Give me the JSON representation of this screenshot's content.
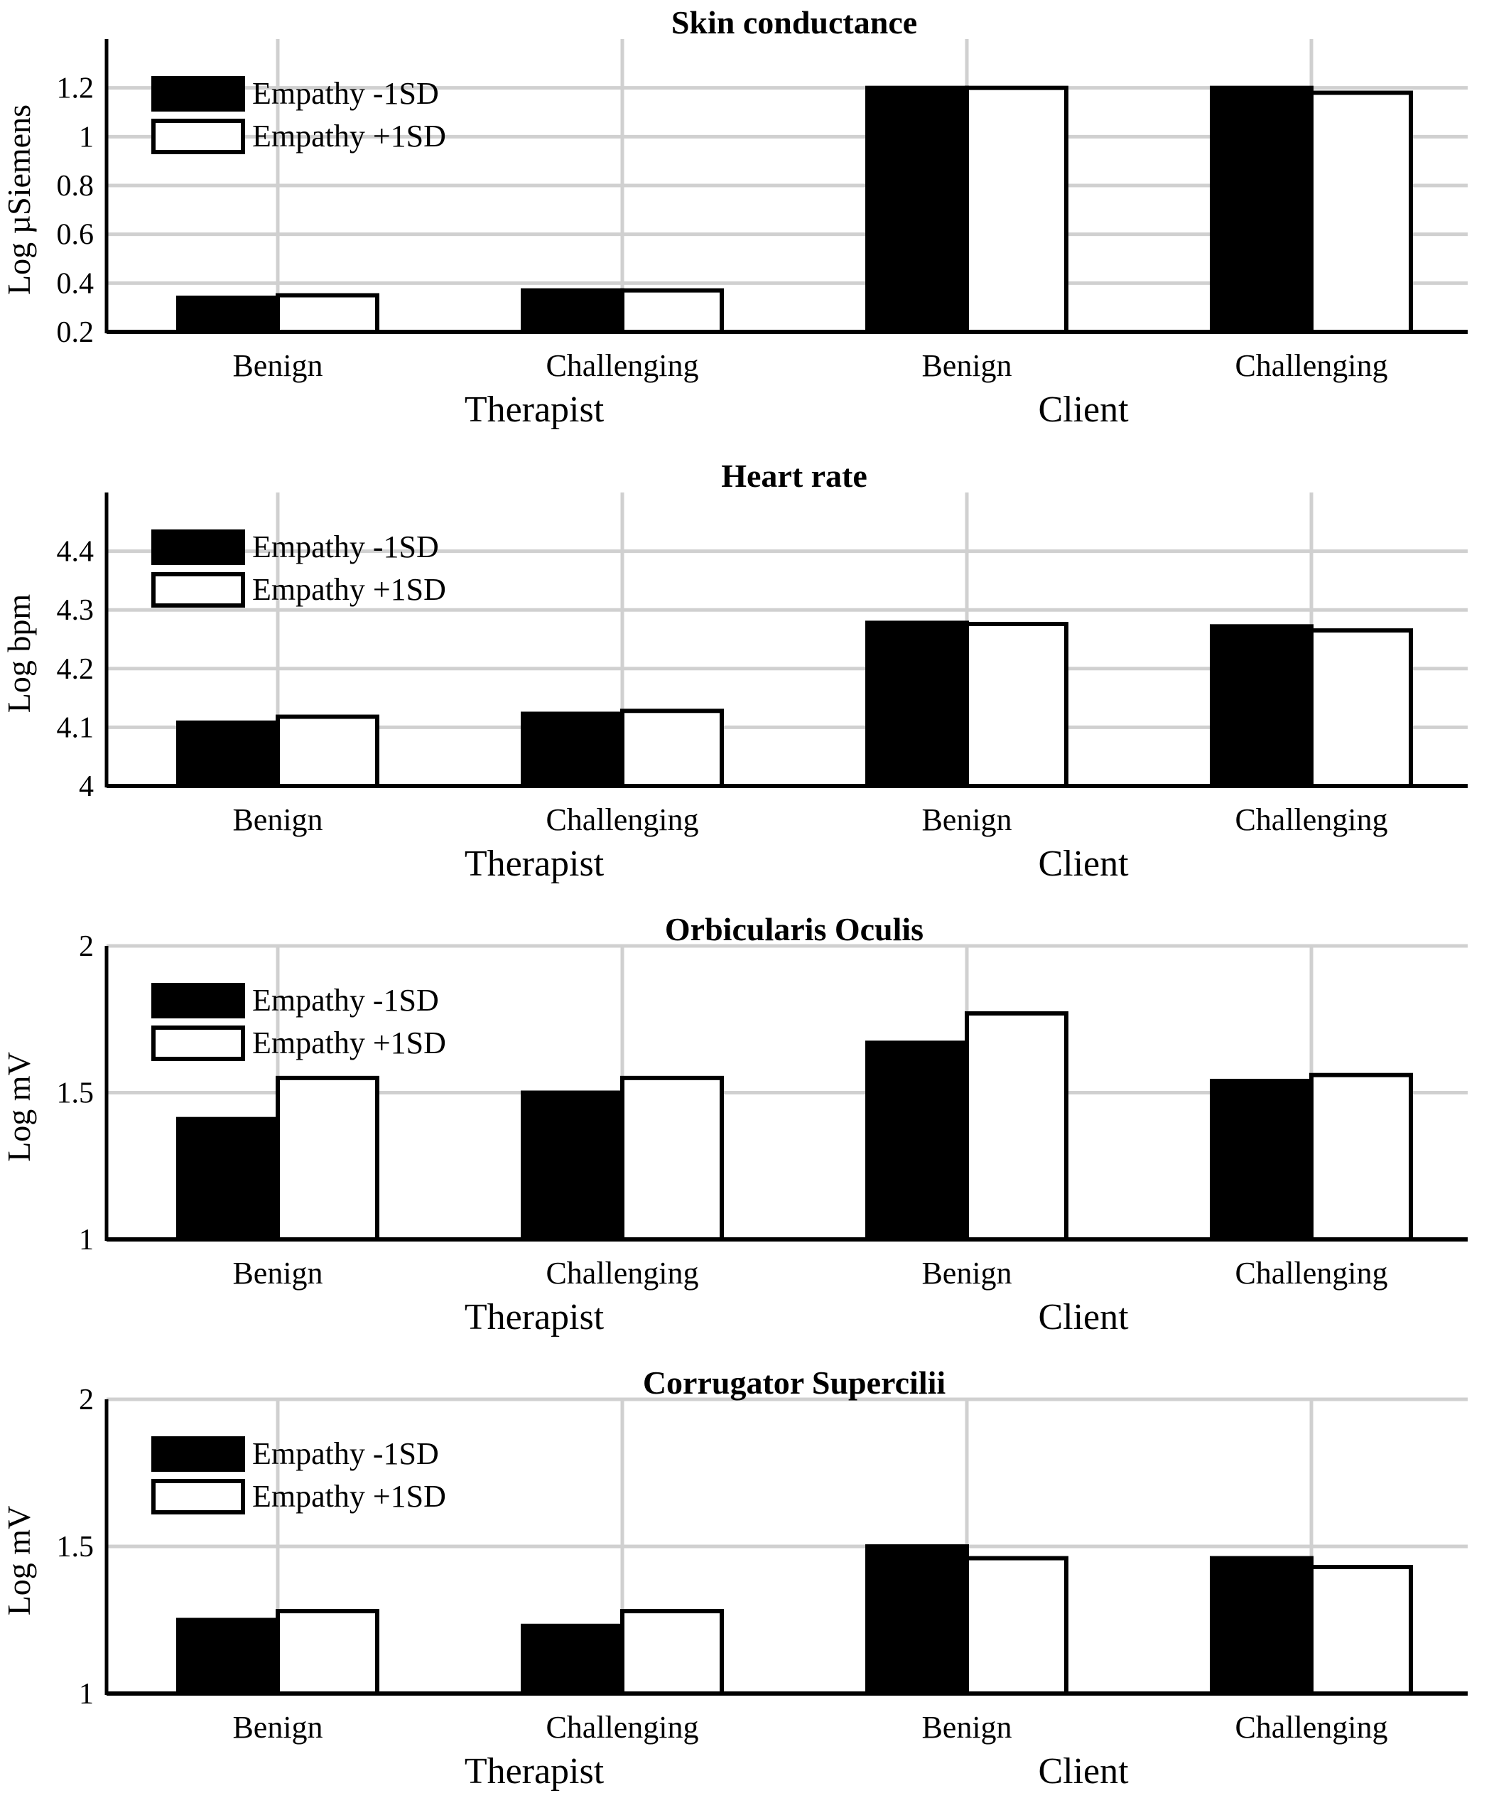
{
  "legend": [
    "Empathy -1SD",
    "Empathy +1SD"
  ],
  "colors": {
    "series1": "#000000",
    "series2": "#ffffff",
    "grid": "#d0d0d0",
    "axis": "#000000"
  },
  "chart_data": [
    {
      "type": "bar",
      "title": "Skin conductance",
      "ylabel": "Log µSiemens",
      "ylim": [
        0.2,
        1.4
      ],
      "yticks": [
        "0.2",
        "0.4",
        "0.6",
        "0.8",
        "1",
        "1.2"
      ],
      "ytick_values": [
        0.2,
        0.4,
        0.6,
        0.8,
        1.0,
        1.2
      ],
      "categories": [
        "Benign",
        "Challenging",
        "Benign",
        "Challenging"
      ],
      "groups": [
        "Therapist",
        "Client"
      ],
      "series": [
        {
          "name": "Empathy -1SD",
          "values": [
            0.34,
            0.37,
            1.2,
            1.2
          ]
        },
        {
          "name": "Empathy +1SD",
          "values": [
            0.35,
            0.37,
            1.2,
            1.18
          ]
        }
      ]
    },
    {
      "type": "bar",
      "title": "Heart rate",
      "ylabel": "Log bpm",
      "ylim": [
        4.0,
        4.5
      ],
      "yticks": [
        "4",
        "4.1",
        "4.2",
        "4.3",
        "4.4"
      ],
      "ytick_values": [
        4.0,
        4.1,
        4.2,
        4.3,
        4.4
      ],
      "categories": [
        "Benign",
        "Challenging",
        "Benign",
        "Challenging"
      ],
      "groups": [
        "Therapist",
        "Client"
      ],
      "series": [
        {
          "name": "Empathy -1SD",
          "values": [
            4.108,
            4.123,
            4.278,
            4.272
          ]
        },
        {
          "name": "Empathy +1SD",
          "values": [
            4.118,
            4.128,
            4.276,
            4.265
          ]
        }
      ]
    },
    {
      "type": "bar",
      "title": "Orbicularis Oculis",
      "ylabel": "Log mV",
      "ylim": [
        1.0,
        2.0
      ],
      "yticks": [
        "1",
        "1.5",
        "2"
      ],
      "ytick_values": [
        1.0,
        1.5,
        2.0
      ],
      "categories": [
        "Benign",
        "Challenging",
        "Benign",
        "Challenging"
      ],
      "groups": [
        "Therapist",
        "Client"
      ],
      "series": [
        {
          "name": "Empathy -1SD",
          "values": [
            1.41,
            1.5,
            1.67,
            1.54
          ]
        },
        {
          "name": "Empathy +1SD",
          "values": [
            1.55,
            1.55,
            1.77,
            1.56
          ]
        }
      ]
    },
    {
      "type": "bar",
      "title": "Corrugator Supercilii",
      "ylabel": "Log mV",
      "ylim": [
        1.0,
        2.0
      ],
      "yticks": [
        "1",
        "1.5",
        "2"
      ],
      "ytick_values": [
        1.0,
        1.5,
        2.0
      ],
      "categories": [
        "Benign",
        "Challenging",
        "Benign",
        "Challenging"
      ],
      "groups": [
        "Therapist",
        "Client"
      ],
      "series": [
        {
          "name": "Empathy -1SD",
          "values": [
            1.25,
            1.23,
            1.5,
            1.46
          ]
        },
        {
          "name": "Empathy +1SD",
          "values": [
            1.28,
            1.28,
            1.46,
            1.43
          ]
        }
      ]
    }
  ]
}
